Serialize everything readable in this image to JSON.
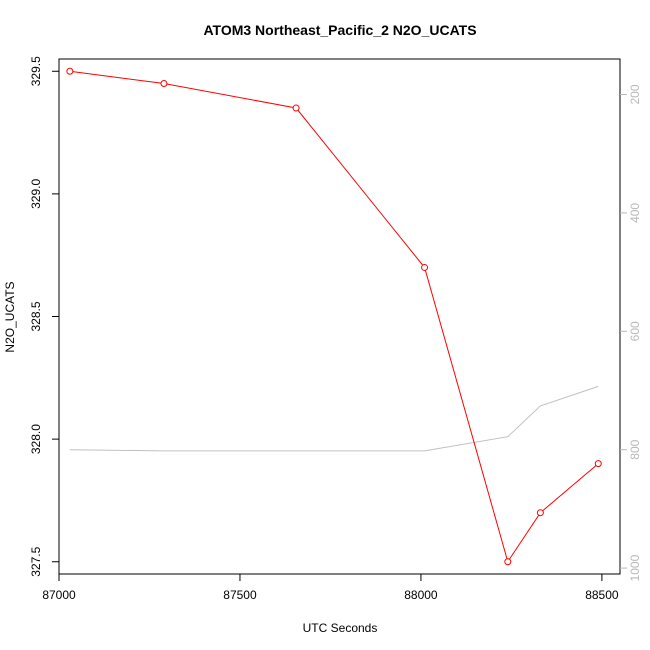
{
  "chart_data": {
    "type": "line",
    "title": "ATOM3 Northeast_Pacific_2 N2O_UCATS",
    "xlabel": "UTC Seconds",
    "ylabel": "N2O_UCATS",
    "xlim": [
      87000,
      88550
    ],
    "ylim": [
      327.45,
      329.55
    ],
    "x_ticks": [
      87000,
      87500,
      88000,
      88500
    ],
    "y_ticks": [
      327.5,
      328.0,
      328.5,
      329.0,
      329.5
    ],
    "y_tick_labels": [
      "327.5",
      "328.0",
      "328.5",
      "329.0",
      "329.5"
    ],
    "y2_ticks": [
      200,
      400,
      600,
      800,
      1000
    ],
    "y2_lim": [
      1010,
      140
    ],
    "grid": false,
    "legend": "none",
    "series": [
      {
        "color": "#ff0000",
        "marker": "open-circle",
        "axis": "left",
        "x": [
          87030,
          87290,
          87655,
          88010,
          88240,
          88330,
          88490
        ],
        "y": [
          329.5,
          329.45,
          329.35,
          328.7,
          327.5,
          327.7,
          327.9
        ]
      },
      {
        "color": "#c0c0c0",
        "marker": "none",
        "axis": "right",
        "x": [
          87030,
          87290,
          87655,
          88010,
          88240,
          88330,
          88490
        ],
        "y": [
          800,
          802,
          802,
          802,
          778,
          726,
          693
        ]
      }
    ]
  }
}
